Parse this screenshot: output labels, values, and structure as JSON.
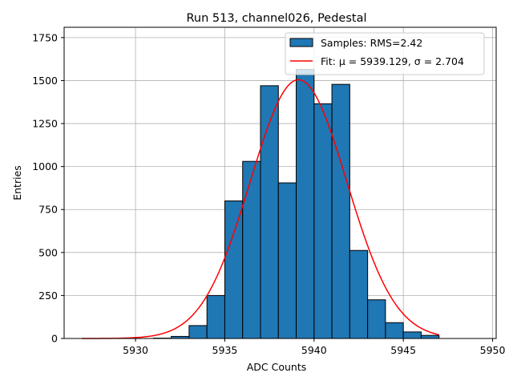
{
  "chart_data": {
    "type": "bar",
    "title": "Run 513, channel026, Pedestal",
    "xlabel": "ADC Counts",
    "ylabel": "Entries",
    "xlim": [
      5926.0,
      5950.2
    ],
    "ylim": [
      0,
      1810
    ],
    "x_ticks": [
      5930,
      5935,
      5940,
      5945,
      5950
    ],
    "y_ticks": [
      0,
      250,
      500,
      750,
      1000,
      1250,
      1500,
      1750
    ],
    "grid": true,
    "legend_position": "upper-right",
    "bin_width": 1,
    "bins": [
      {
        "left": 5931,
        "count": 2
      },
      {
        "left": 5932,
        "count": 12
      },
      {
        "left": 5933,
        "count": 75
      },
      {
        "left": 5934,
        "count": 250
      },
      {
        "left": 5935,
        "count": 800
      },
      {
        "left": 5936,
        "count": 1030
      },
      {
        "left": 5937,
        "count": 1470
      },
      {
        "left": 5938,
        "count": 905
      },
      {
        "left": 5939,
        "count": 1565
      },
      {
        "left": 5940,
        "count": 1365
      },
      {
        "left": 5941,
        "count": 1478
      },
      {
        "left": 5942,
        "count": 512
      },
      {
        "left": 5943,
        "count": 225
      },
      {
        "left": 5944,
        "count": 92
      },
      {
        "left": 5945,
        "count": 38
      },
      {
        "left": 5946,
        "count": 18
      }
    ],
    "series": [
      {
        "name": "Samples: RMS=2.42",
        "kind": "histogram",
        "color": "#1f77b4",
        "edgecolor": "#000000"
      },
      {
        "name": "Fit: μ = 5939.129, σ = 2.704",
        "kind": "gaussian",
        "color": "#ff0000",
        "mu": 5939.129,
        "sigma": 2.704,
        "amplitude": 1505,
        "x_range": [
          5927,
          5947
        ]
      }
    ]
  }
}
